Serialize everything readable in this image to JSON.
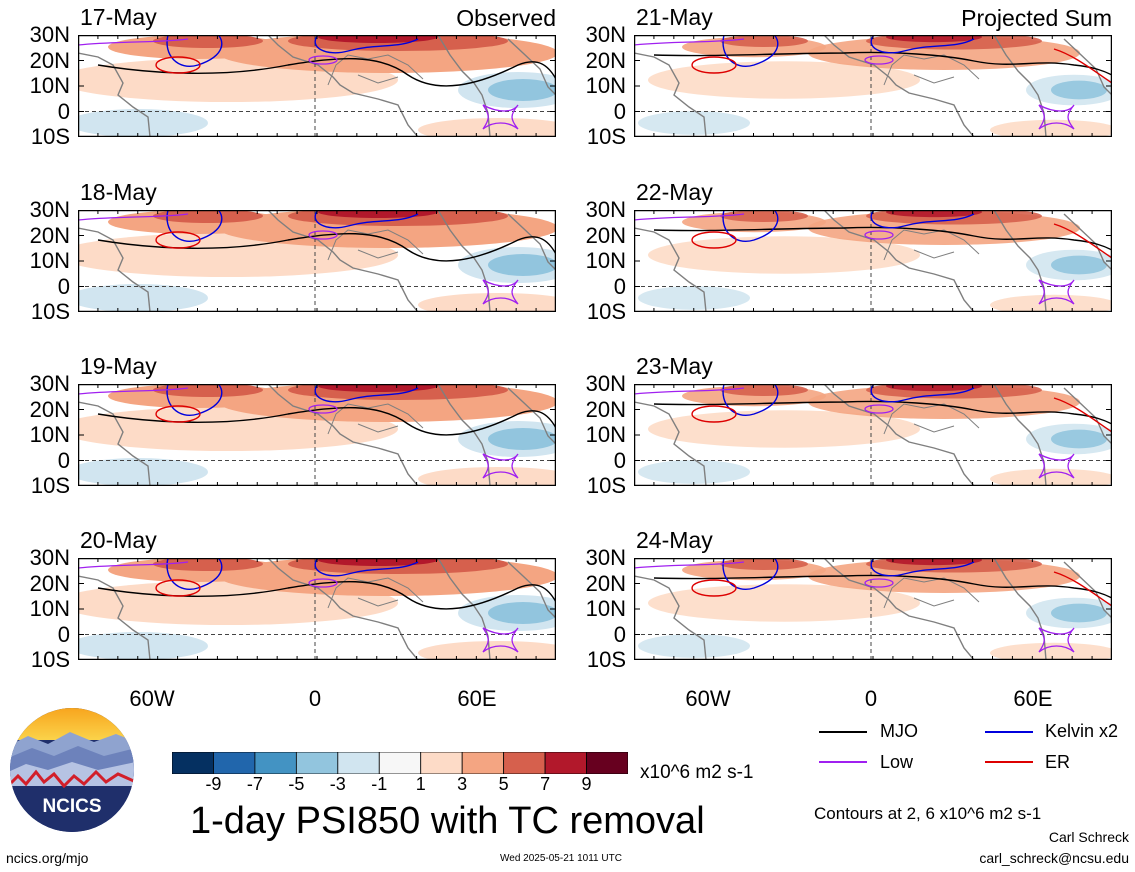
{
  "chart_data": {
    "type": "heatmap",
    "title": "1-day PSI850 with TC removal",
    "units": "x10^6 m2 s-1",
    "lat_ticks": [
      "30N",
      "20N",
      "10N",
      "0",
      "10S"
    ],
    "lon_ticks": [
      "60W",
      "0",
      "60E"
    ],
    "colorbar_ticks": [
      "-9",
      "-7",
      "-5",
      "-3",
      "-1",
      "1",
      "3",
      "5",
      "7",
      "9"
    ],
    "colorbar_colors": [
      "#053061",
      "#2166ac",
      "#4393c3",
      "#92c5de",
      "#d1e5f0",
      "#f7f7f7",
      "#fddbc7",
      "#f4a582",
      "#d6604d",
      "#b2182b",
      "#67001f"
    ],
    "panels": [
      {
        "date": "17-May",
        "tag": "Observed",
        "col": 0,
        "row": 0
      },
      {
        "date": "18-May",
        "tag": "",
        "col": 0,
        "row": 1
      },
      {
        "date": "19-May",
        "tag": "",
        "col": 0,
        "row": 2
      },
      {
        "date": "20-May",
        "tag": "",
        "col": 0,
        "row": 3
      },
      {
        "date": "21-May",
        "tag": "Projected Sum",
        "col": 1,
        "row": 0
      },
      {
        "date": "22-May",
        "tag": "",
        "col": 1,
        "row": 1
      },
      {
        "date": "23-May",
        "tag": "",
        "col": 1,
        "row": 2
      },
      {
        "date": "24-May",
        "tag": "",
        "col": 1,
        "row": 3
      }
    ],
    "legend": [
      {
        "label": "MJO",
        "color": "#000000"
      },
      {
        "label": "Kelvin x2",
        "color": "#0000dd"
      },
      {
        "label": "Low",
        "color": "#a020f0"
      },
      {
        "label": "ER",
        "color": "#dd0000"
      }
    ],
    "contour_note": "Contours at 2, 6 x10^6 m2 s-1"
  },
  "footer": {
    "logo_text": "NCICS",
    "url": "ncics.org/mjo",
    "timestamp": "Wed 2025-05-21 1011 UTC",
    "author": "Carl Schreck",
    "email": "carl_schreck@ncsu.edu"
  }
}
